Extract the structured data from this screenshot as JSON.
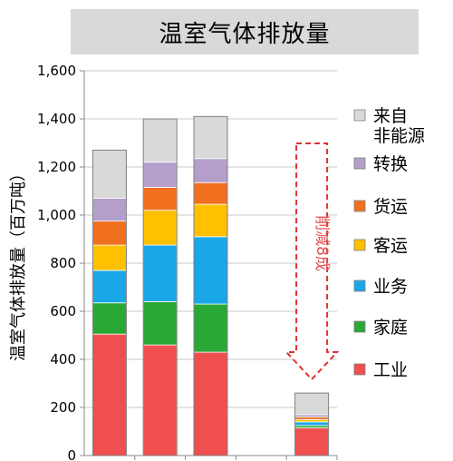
{
  "chart_data": {
    "type": "bar",
    "stacked": true,
    "title": "温室气体排放量",
    "ylabel": "温室气体排放量（百万吨）",
    "xlabel": "",
    "ylim": [
      0,
      1600
    ],
    "yticks": [
      "0",
      "200",
      "400",
      "600",
      "800",
      "1,000",
      "1,200",
      "1,400",
      "1,600"
    ],
    "grid": true,
    "legend_position": "right",
    "categories": [
      "",
      "",
      "",
      "",
      ""
    ],
    "series": [
      {
        "name": "工业",
        "color": "#f04f4f",
        "values": [
          505,
          460,
          430,
          null,
          115
        ]
      },
      {
        "name": "家庭",
        "color": "#2aa836",
        "values": [
          130,
          180,
          200,
          null,
          10
        ]
      },
      {
        "name": "业务",
        "color": "#1aa7e8",
        "values": [
          135,
          235,
          280,
          null,
          15
        ]
      },
      {
        "name": "客运",
        "color": "#ffc000",
        "values": [
          105,
          145,
          135,
          null,
          10
        ]
      },
      {
        "name": "货运",
        "color": "#f07020",
        "values": [
          100,
          95,
          90,
          null,
          10
        ]
      },
      {
        "name": "转换",
        "color": "#b49fcc",
        "values": [
          95,
          105,
          100,
          null,
          10
        ]
      },
      {
        "name": "来自\n非能源",
        "color": "#d9d9d9",
        "values": [
          200,
          180,
          175,
          null,
          90
        ]
      }
    ],
    "annotation": "削减8成"
  }
}
